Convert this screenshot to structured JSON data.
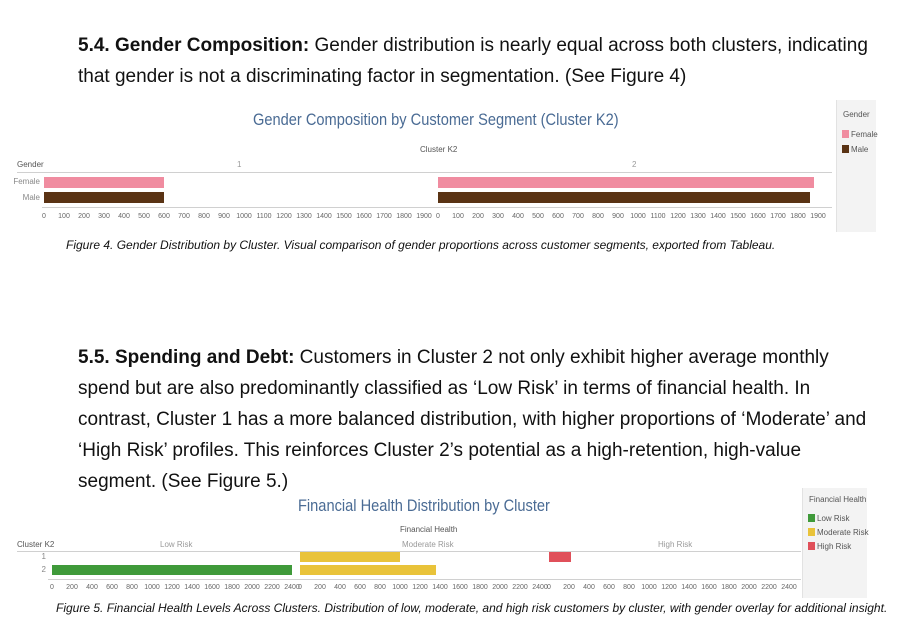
{
  "section_54": {
    "heading": "5.4. Gender Composition:",
    "text": " Gender distribution is nearly equal across both clusters, indicating that gender is not a discriminating factor in segmentation. (See Figure 4)"
  },
  "figure4": {
    "title": "Gender Composition by Customer Segment (Cluster K2)",
    "column_header": "Cluster K2",
    "row_header": "Gender",
    "caption": "Figure 4. Gender Distribution by Cluster. Visual comparison of gender proportions across customer segments, exported from Tableau.",
    "legend": {
      "title": "Gender",
      "items": [
        {
          "label": "Female",
          "color": "#f08ca0"
        },
        {
          "label": "Male",
          "color": "#5a3314"
        }
      ]
    }
  },
  "section_55": {
    "heading": "5.5. Spending and Debt:",
    "text": " Customers in Cluster 2 not only exhibit higher average monthly spend but are also predominantly classified as ‘Low Risk’ in terms of financial health. In contrast, Cluster 1 has a more balanced distribution, with higher proportions of ‘Moderate’ and ‘High Risk’ profiles. This reinforces Cluster 2’s potential as a high-retention, high-value segment. (See Figure 5.)"
  },
  "figure5": {
    "title": "Financial Health Distribution by Cluster",
    "column_header": "Financial Health",
    "row_header": "Cluster K2",
    "caption": "Figure 5. Financial Health Levels Across Clusters. Distribution of low, moderate, and high risk customers by cluster, with gender overlay for additional insight.",
    "legend": {
      "title": "Financial Health",
      "items": [
        {
          "label": "Low Risk",
          "color": "#3f9a3a"
        },
        {
          "label": "Moderate Risk",
          "color": "#e9c33a"
        },
        {
          "label": "High Risk",
          "color": "#e0505a"
        }
      ]
    }
  },
  "chart_data": [
    {
      "type": "bar",
      "title": "Gender Composition by Customer Segment (Cluster K2)",
      "panels": [
        "1",
        "2"
      ],
      "categories": [
        "Female",
        "Male"
      ],
      "series": [
        {
          "panel": "1",
          "values": [
            600,
            600
          ]
        },
        {
          "panel": "2",
          "values": [
            1880,
            1860
          ]
        }
      ],
      "xticks": [
        "0",
        "100",
        "200",
        "300",
        "400",
        "500",
        "600",
        "700",
        "800",
        "900",
        "1000",
        "1100",
        "1200",
        "1300",
        "1400",
        "1500",
        "1600",
        "1700",
        "1800",
        "1900"
      ],
      "xlim": [
        0,
        1950
      ],
      "ylabel": "Gender"
    },
    {
      "type": "bar",
      "title": "Financial Health Distribution by Cluster",
      "panels": [
        "Low Risk",
        "Moderate Risk",
        "High Risk"
      ],
      "categories": [
        "1",
        "2"
      ],
      "series": [
        {
          "panel": "Low Risk",
          "values": [
            0,
            2400
          ]
        },
        {
          "panel": "Moderate Risk",
          "values": [
            1000,
            1360
          ]
        },
        {
          "panel": "High Risk",
          "values": [
            220,
            0
          ]
        }
      ],
      "xticks": [
        "0",
        "200",
        "400",
        "600",
        "800",
        "1000",
        "1200",
        "1400",
        "1600",
        "1800",
        "2000",
        "2200",
        "2400"
      ],
      "xlim": [
        0,
        2480
      ],
      "ylabel": "Cluster K2"
    }
  ]
}
